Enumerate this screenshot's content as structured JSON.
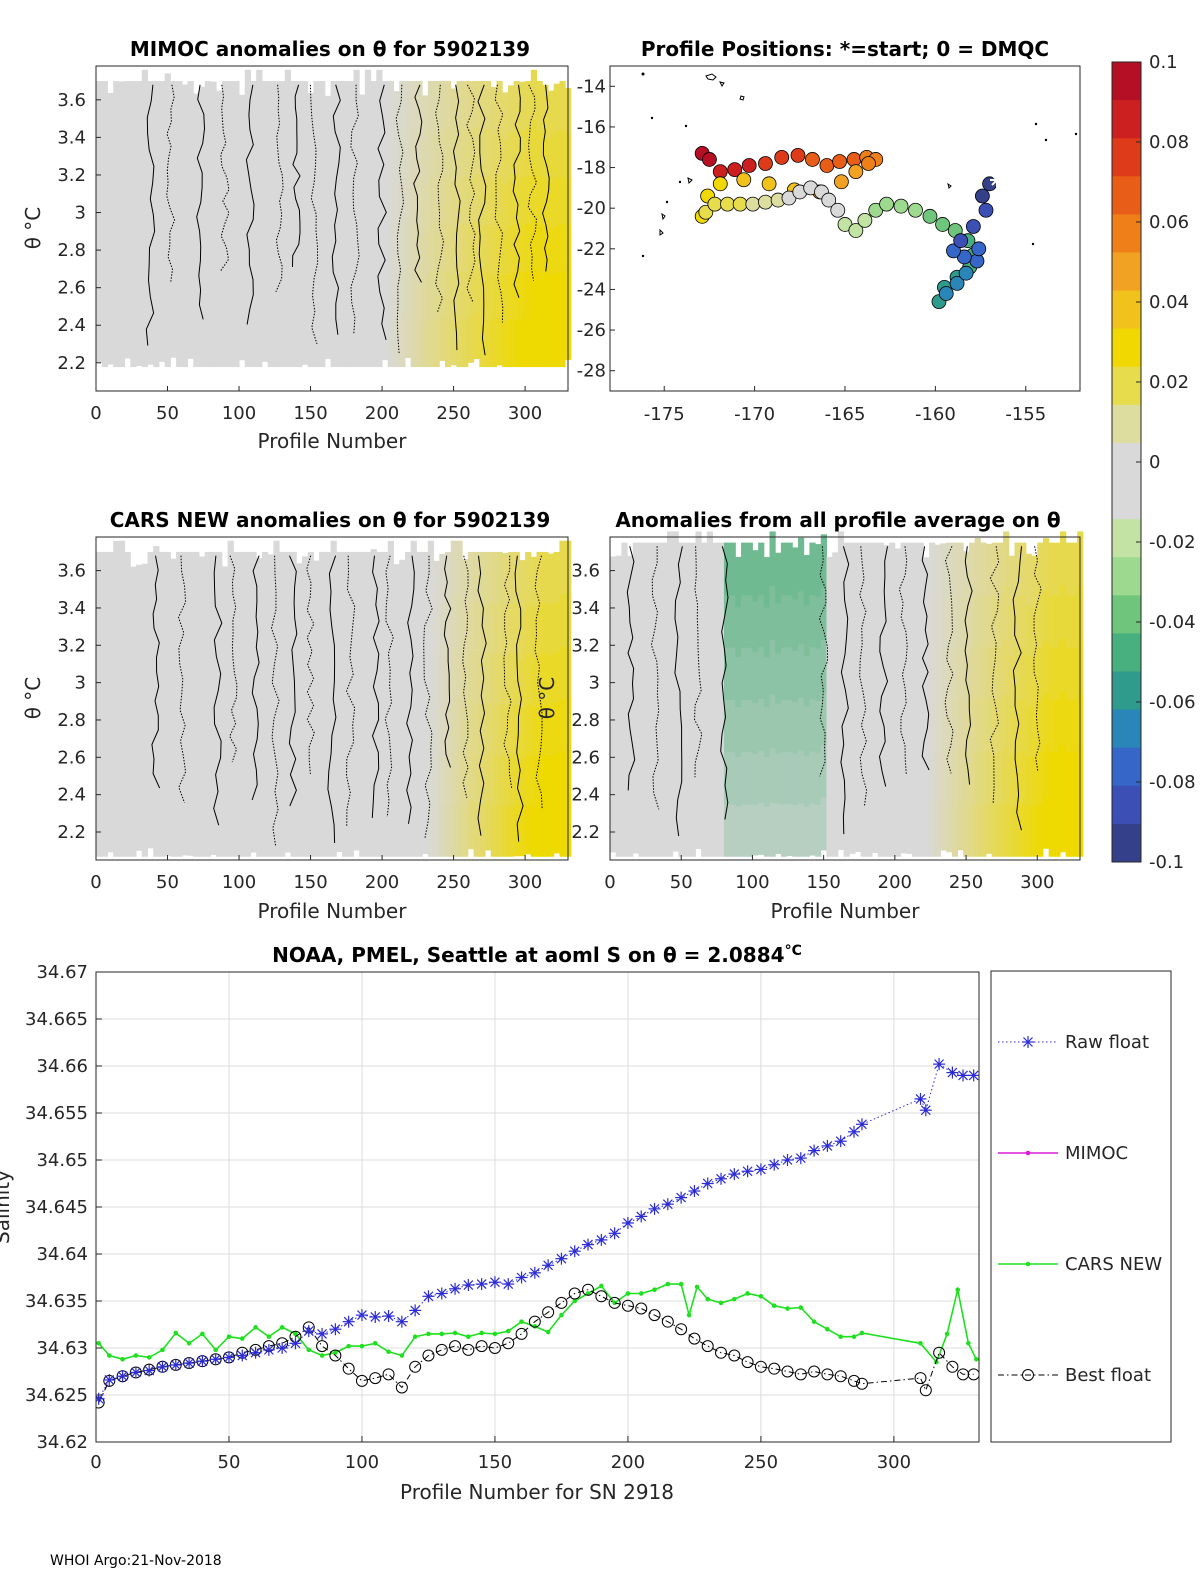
{
  "footer": "WHOI Argo:21-Nov-2018",
  "colors": {
    "raw_float": "#2b2bd6",
    "mimoc": "#d91fd9",
    "cars_new": "#1fe01f",
    "best_float": "#000000",
    "anomaly_background": "#d9d9d9",
    "positive_anomaly": "#eed900",
    "negative_anomaly": "#4db07a"
  },
  "chart_data": [
    {
      "id": "mimoc",
      "type": "heatmap",
      "title": "MIMOC anomalies on θ  for 5902139",
      "xlabel": "Profile Number",
      "ylabel": "θ °C",
      "xlim": [
        0,
        330
      ],
      "ylim": [
        2.05,
        3.78
      ],
      "xticks": [
        0,
        50,
        100,
        150,
        200,
        250,
        300
      ],
      "yticks": [
        2.2,
        2.4,
        2.6,
        2.8,
        3,
        3.2,
        3.4,
        3.6
      ],
      "ytick_labels": [
        "2.2",
        "2.4",
        "2.6",
        "2.8",
        "3",
        "3.2",
        "3.4",
        "3.6"
      ],
      "theta_range": [
        2.18,
        3.7
      ],
      "zero_contour_x": [
        38,
        52,
        73,
        90,
        108,
        128,
        140,
        152,
        168,
        181,
        200,
        212,
        225,
        240,
        252,
        262,
        270,
        282,
        294,
        305,
        315
      ],
      "warm_onset_profile": 200,
      "warm_peak_profile": 305,
      "warm_peak_anomaly": 0.035
    },
    {
      "id": "positions",
      "type": "scatter",
      "title": "Profile Positions: *=start; 0 = DMQC",
      "xlim": [
        -178,
        -152
      ],
      "ylim": [
        -29,
        -13
      ],
      "xticks": [
        -175,
        -170,
        -165,
        -160,
        -155
      ],
      "yticks": [
        -28,
        -26,
        -24,
        -22,
        -20,
        -18,
        -16,
        -14
      ],
      "ytick_labels": [
        "-28",
        "-26",
        "-24",
        "-22",
        "-20",
        "-18",
        "-16",
        "-14"
      ],
      "color_by": "profile_number",
      "track_lon": [
        -157.0,
        -157.4,
        -157.2,
        -157.9,
        -158.6,
        -159.0,
        -158.4,
        -157.6,
        -157.7,
        -158.3,
        -158.8,
        -159.4,
        -159.8,
        -159.5,
        -158.8,
        -158.1,
        -157.9,
        -158.2,
        -158.9,
        -159.6,
        -160.3,
        -161.1,
        -161.9,
        -162.7,
        -163.3,
        -163.9,
        -164.4,
        -165.0,
        -165.4,
        -165.9,
        -166.3,
        -166.9,
        -167.5,
        -168.1,
        -168.7,
        -169.4,
        -170.1,
        -170.8,
        -171.5,
        -172.2,
        -172.7,
        -172.9,
        -172.6,
        -171.9,
        -170.6,
        -169.2,
        -167.8,
        -166.4,
        -165.2,
        -164.4,
        -163.7,
        -163.3,
        -163.8,
        -164.5,
        -165.3,
        -166.0,
        -166.8,
        -167.6,
        -168.5,
        -169.4,
        -170.3,
        -171.1,
        -171.9,
        -172.5,
        -172.9
      ],
      "track_lat": [
        -18.8,
        -19.4,
        -20.1,
        -20.9,
        -21.6,
        -22.1,
        -22.4,
        -22.0,
        -22.6,
        -23.2,
        -23.7,
        -24.2,
        -24.6,
        -23.9,
        -23.4,
        -22.9,
        -22.3,
        -21.6,
        -21.1,
        -20.8,
        -20.4,
        -20.1,
        -19.9,
        -19.8,
        -20.1,
        -20.6,
        -21.1,
        -20.8,
        -20.1,
        -19.6,
        -19.2,
        -19.0,
        -19.2,
        -19.5,
        -19.6,
        -19.7,
        -19.8,
        -19.8,
        -19.8,
        -19.8,
        -20.2,
        -20.4,
        -19.4,
        -18.8,
        -18.6,
        -18.8,
        -19.1,
        -19.2,
        -18.7,
        -18.2,
        -17.8,
        -17.6,
        -17.5,
        -17.6,
        -17.7,
        -17.9,
        -17.6,
        -17.4,
        -17.5,
        -17.8,
        -17.9,
        -18.1,
        -18.2,
        -17.6,
        -17.3
      ]
    },
    {
      "id": "colorbar",
      "type": "colorbar",
      "clim": [
        -0.1,
        0.1
      ],
      "ticks": [
        0.1,
        0.08,
        0.06,
        0.04,
        0.02,
        0,
        -0.02,
        -0.04,
        -0.06,
        -0.08,
        -0.1
      ],
      "tick_labels": [
        "0.1",
        "0.08",
        "0.06",
        "0.04",
        "0.02",
        "0",
        "-0.02",
        "-0.04",
        "-0.06",
        "-0.08",
        "-0.1"
      ],
      "bands": [
        "#b40f24",
        "#cc1f1f",
        "#dd3b1a",
        "#e85d17",
        "#ef8019",
        "#f2a222",
        "#f2c21c",
        "#f0d800",
        "#e7dc4b",
        "#dedda0",
        "#d9d9d9",
        "#d9d9d9",
        "#c2e3a3",
        "#9dd98e",
        "#6fc57c",
        "#48b07f",
        "#2e9b8c",
        "#2a86b8",
        "#3566c8",
        "#3c4fb5",
        "#34418a"
      ]
    },
    {
      "id": "cars",
      "type": "heatmap",
      "title": "CARS NEW anomalies on θ for 5902139",
      "xlabel": "Profile Number",
      "ylabel": "θ °C",
      "xlim": [
        0,
        330
      ],
      "ylim": [
        2.05,
        3.78
      ],
      "xticks": [
        0,
        50,
        100,
        150,
        200,
        250,
        300
      ],
      "yticks": [
        2.2,
        2.4,
        2.6,
        2.8,
        3,
        3.2,
        3.4,
        3.6
      ],
      "ytick_labels": [
        "2.2",
        "2.4",
        "2.6",
        "2.8",
        "3",
        "3.2",
        "3.4",
        "3.6"
      ],
      "theta_range": [
        2.07,
        3.7
      ],
      "zero_contour_x": [
        42,
        60,
        85,
        96,
        112,
        125,
        138,
        150,
        165,
        178,
        195,
        205,
        220,
        232,
        245,
        258,
        270,
        288,
        296,
        310
      ],
      "warm_onset_profile": 230,
      "warm_peak_profile": 310,
      "warm_peak_anomaly": 0.035
    },
    {
      "id": "allavg",
      "type": "heatmap",
      "title": "Anomalies from all profile average on θ",
      "xlabel": "Profile Number",
      "ylabel": "θ °C",
      "xlim": [
        0,
        330
      ],
      "ylim": [
        2.05,
        3.78
      ],
      "xticks": [
        0,
        50,
        100,
        150,
        200,
        250,
        300
      ],
      "yticks": [
        2.2,
        2.4,
        2.6,
        2.8,
        3,
        3.2,
        3.4,
        3.6
      ],
      "ytick_labels": [
        "2.2",
        "2.4",
        "2.6",
        "2.8",
        "3",
        "3.2",
        "3.4",
        "3.6"
      ],
      "theta_range": [
        2.07,
        3.75
      ],
      "zero_contour_x": [
        15,
        32,
        48,
        62,
        80,
        150,
        165,
        178,
        192,
        206,
        222,
        238,
        252,
        270,
        286,
        300
      ],
      "fresh_band_profiles": [
        80,
        150
      ],
      "fresh_peak_anomaly": -0.05,
      "warm_onset_profile": 220,
      "warm_peak_profile": 310,
      "warm_peak_anomaly": 0.035
    },
    {
      "id": "salinity",
      "type": "line",
      "title": "NOAA, PMEL, Seattle at aoml S on θ = 2.0884°C",
      "title_main": "NOAA, PMEL, Seattle at aoml S on θ = 2.0884",
      "title_unit": "°C",
      "xlabel": "Profile Number for SN 2918",
      "ylabel": "Salinity",
      "xlim": [
        0,
        332
      ],
      "ylim": [
        34.62,
        34.67
      ],
      "xticks": [
        0,
        50,
        100,
        150,
        200,
        250,
        300
      ],
      "yticks": [
        34.62,
        34.625,
        34.63,
        34.635,
        34.64,
        34.645,
        34.65,
        34.655,
        34.66,
        34.665,
        34.67
      ],
      "ytick_labels": [
        "34.62",
        "34.625",
        "34.63",
        "34.635",
        "34.64",
        "34.645",
        "34.65",
        "34.655",
        "34.66",
        "34.665",
        "34.67"
      ],
      "grid": true,
      "legend_position": "right",
      "series": [
        {
          "name": "Raw float",
          "style": "dotted-asterisk",
          "x": [
            1,
            5,
            10,
            15,
            20,
            25,
            30,
            35,
            40,
            45,
            50,
            55,
            60,
            65,
            70,
            75,
            80,
            85,
            90,
            95,
            100,
            105,
            110,
            115,
            120,
            125,
            130,
            135,
            140,
            145,
            150,
            155,
            160,
            165,
            170,
            175,
            180,
            185,
            190,
            195,
            200,
            205,
            210,
            215,
            220,
            225,
            230,
            235,
            240,
            245,
            250,
            255,
            260,
            265,
            270,
            275,
            280,
            285,
            288,
            310,
            312,
            317,
            322,
            326,
            330
          ],
          "y": [
            34.6246,
            34.6266,
            34.627,
            34.6274,
            34.6276,
            34.628,
            34.6282,
            34.6284,
            34.6286,
            34.6288,
            34.629,
            34.6292,
            34.6295,
            34.6298,
            34.63,
            34.6305,
            34.6318,
            34.6315,
            34.632,
            34.6328,
            34.6335,
            34.6333,
            34.6334,
            34.6328,
            34.634,
            34.6355,
            34.6358,
            34.6363,
            34.6367,
            34.6368,
            34.637,
            34.6368,
            34.6375,
            34.638,
            34.6388,
            34.6395,
            34.6403,
            34.641,
            34.6415,
            34.6422,
            34.6433,
            34.644,
            34.6448,
            34.6453,
            34.646,
            34.6467,
            34.6475,
            34.648,
            34.6485,
            34.6488,
            34.649,
            34.6495,
            34.65,
            34.6502,
            34.651,
            34.6515,
            34.652,
            34.653,
            34.6538,
            34.6565,
            34.6553,
            34.6602,
            34.6593,
            34.659,
            34.659
          ]
        },
        {
          "name": "MIMOC",
          "style": "solid-dot",
          "x": [],
          "y": []
        },
        {
          "name": "CARS NEW",
          "style": "solid-dot",
          "x": [
            1,
            5,
            10,
            15,
            20,
            25,
            30,
            35,
            40,
            45,
            50,
            55,
            60,
            65,
            70,
            75,
            80,
            85,
            90,
            95,
            100,
            105,
            110,
            115,
            120,
            125,
            130,
            135,
            140,
            145,
            150,
            155,
            160,
            165,
            170,
            175,
            180,
            185,
            190,
            195,
            200,
            205,
            210,
            215,
            220,
            223,
            226,
            230,
            235,
            240,
            245,
            250,
            255,
            260,
            265,
            270,
            275,
            280,
            285,
            288,
            310,
            316,
            320,
            324,
            328,
            331
          ],
          "y": [
            34.6305,
            34.6292,
            34.6288,
            34.6292,
            34.629,
            34.6298,
            34.6316,
            34.6305,
            34.6315,
            34.6298,
            34.6312,
            34.631,
            34.6322,
            34.6312,
            34.6322,
            34.6315,
            34.6298,
            34.6292,
            34.6295,
            34.6302,
            34.6302,
            34.6305,
            34.6296,
            34.6292,
            34.6312,
            34.6315,
            34.6315,
            34.6316,
            34.6312,
            34.6316,
            34.6315,
            34.6318,
            34.6328,
            34.6323,
            34.6317,
            34.6335,
            34.635,
            34.6358,
            34.6366,
            34.6348,
            34.6358,
            34.6358,
            34.6362,
            34.6368,
            34.6368,
            34.6335,
            34.6365,
            34.6352,
            34.6348,
            34.6352,
            34.6358,
            34.6355,
            34.6345,
            34.6342,
            34.6343,
            34.6328,
            34.632,
            34.6312,
            34.6312,
            34.6316,
            34.6305,
            34.6285,
            34.6315,
            34.6362,
            34.6305,
            34.6288
          ]
        },
        {
          "name": "Best float",
          "style": "dashdot-circle",
          "x": [
            1,
            5,
            10,
            15,
            20,
            25,
            30,
            35,
            40,
            45,
            50,
            55,
            60,
            65,
            70,
            75,
            80,
            85,
            90,
            95,
            100,
            105,
            110,
            115,
            120,
            125,
            130,
            135,
            140,
            145,
            150,
            155,
            160,
            165,
            170,
            175,
            180,
            185,
            190,
            195,
            200,
            205,
            210,
            215,
            220,
            225,
            230,
            235,
            240,
            245,
            250,
            255,
            260,
            265,
            270,
            275,
            280,
            285,
            288,
            310,
            312,
            317,
            322,
            326,
            330
          ],
          "y": [
            34.6242,
            34.6265,
            34.627,
            34.6274,
            34.6277,
            34.628,
            34.6282,
            34.6284,
            34.6286,
            34.6288,
            34.629,
            34.6295,
            34.6298,
            34.6302,
            34.6305,
            34.6312,
            34.6322,
            34.6302,
            34.6292,
            34.6278,
            34.6265,
            34.6268,
            34.6272,
            34.6258,
            34.628,
            34.6292,
            34.6298,
            34.6302,
            34.6298,
            34.6302,
            34.63,
            34.6305,
            34.6315,
            34.6328,
            34.6338,
            34.6348,
            34.6358,
            34.6362,
            34.6355,
            34.6348,
            34.6345,
            34.6342,
            34.6335,
            34.6328,
            34.632,
            34.631,
            34.6302,
            34.6295,
            34.6292,
            34.6285,
            34.628,
            34.6278,
            34.6275,
            34.6272,
            34.6275,
            34.6272,
            34.627,
            34.6265,
            34.6262,
            34.6268,
            34.6255,
            34.6295,
            34.628,
            34.6272,
            34.6272
          ]
        }
      ]
    }
  ]
}
